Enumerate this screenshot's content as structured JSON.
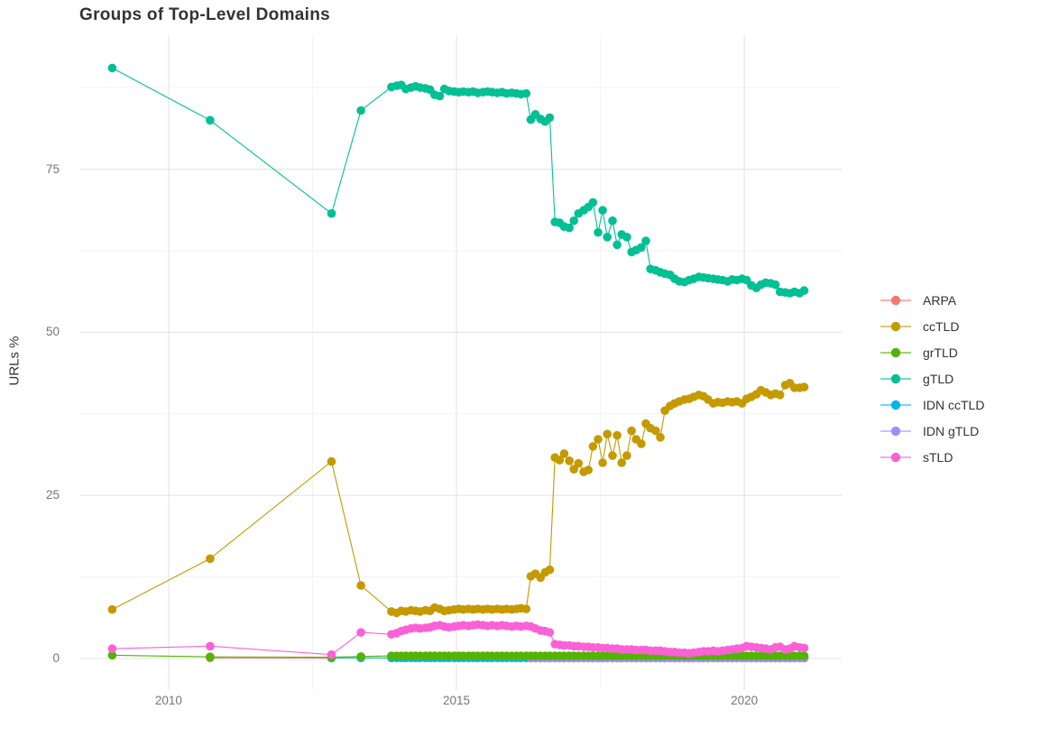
{
  "chart_data": {
    "type": "line",
    "title": "Groups of Top-Level Domains",
    "ylabel": "URLs %",
    "xlabel": "",
    "legend_position": "right",
    "grid": true,
    "xlim": [
      2008.45,
      2021.69
    ],
    "ylim": [
      -4.84,
      95.4
    ],
    "x_ticks": [
      2010,
      2015,
      2020
    ],
    "x_tick_labels": [
      "2010",
      "2015",
      "2020"
    ],
    "x_minor_ticks": [
      2012.5,
      2017.5
    ],
    "y_ticks": [
      0,
      25,
      50,
      75
    ],
    "y_tick_labels": [
      "0",
      "25",
      "50",
      "75"
    ],
    "y_minor_ticks": [
      12.5,
      37.5,
      62.5,
      87.5
    ],
    "x": [
      2009.02,
      2010.72,
      2012.83,
      2013.34,
      2013.87,
      2013.96,
      2014.04,
      2014.12,
      2014.21,
      2014.29,
      2014.37,
      2014.46,
      2014.54,
      2014.62,
      2014.71,
      2014.79,
      2014.87,
      2014.96,
      2015.04,
      2015.12,
      2015.21,
      2015.29,
      2015.37,
      2015.46,
      2015.54,
      2015.62,
      2015.71,
      2015.79,
      2015.87,
      2015.96,
      2016.04,
      2016.12,
      2016.21,
      2016.29,
      2016.37,
      2016.46,
      2016.54,
      2016.62,
      2016.71,
      2016.79,
      2016.87,
      2016.96,
      2017.04,
      2017.12,
      2017.21,
      2017.29,
      2017.37,
      2017.46,
      2017.54,
      2017.62,
      2017.71,
      2017.79,
      2017.87,
      2017.96,
      2018.04,
      2018.12,
      2018.21,
      2018.29,
      2018.37,
      2018.46,
      2018.54,
      2018.62,
      2018.71,
      2018.79,
      2018.87,
      2018.96,
      2019.04,
      2019.12,
      2019.21,
      2019.29,
      2019.37,
      2019.46,
      2019.54,
      2019.62,
      2019.71,
      2019.79,
      2019.87,
      2019.96,
      2020.04,
      2020.12,
      2020.21,
      2020.29,
      2020.37,
      2020.46,
      2020.54,
      2020.62,
      2020.71,
      2020.79,
      2020.87,
      2020.96,
      2021.04
    ],
    "series": [
      {
        "name": "ARPA",
        "color": "#F8766D",
        "values": [
          null,
          0.1,
          0.05,
          null,
          null,
          null,
          null,
          null,
          null,
          null,
          null,
          null,
          null,
          null,
          null,
          null,
          null,
          null,
          null,
          null,
          null,
          null,
          null,
          null,
          null,
          null,
          null,
          null,
          null,
          null,
          null,
          null,
          null,
          null,
          null,
          null,
          null,
          null,
          null,
          null,
          null,
          null,
          null,
          null,
          null,
          null,
          null,
          null,
          null,
          null,
          null,
          null,
          null,
          null,
          null,
          null,
          null,
          null,
          null,
          null,
          null,
          null,
          null,
          null,
          null,
          null,
          null,
          null,
          null,
          null,
          null,
          null,
          null,
          null,
          null,
          null,
          null,
          null,
          null,
          null,
          null,
          null,
          null,
          null,
          null,
          null,
          null,
          null,
          null,
          null,
          null
        ]
      },
      {
        "name": "ccTLD",
        "color": "#C49A00",
        "values": [
          7.5,
          15.3,
          30.2,
          11.2,
          7.2,
          7.0,
          7.3,
          7.2,
          7.4,
          7.3,
          7.2,
          7.4,
          7.3,
          7.8,
          7.6,
          7.3,
          7.4,
          7.5,
          7.6,
          7.5,
          7.6,
          7.5,
          7.6,
          7.5,
          7.6,
          7.5,
          7.6,
          7.5,
          7.6,
          7.5,
          7.6,
          7.7,
          7.6,
          12.6,
          13.0,
          12.4,
          13.2,
          13.6,
          30.8,
          30.4,
          31.4,
          30.3,
          29.0,
          29.9,
          28.6,
          28.9,
          32.5,
          33.6,
          30.0,
          34.4,
          31.1,
          34.2,
          30.0,
          31.1,
          34.9,
          33.6,
          32.9,
          36.0,
          35.3,
          34.9,
          33.9,
          38.0,
          38.7,
          39.1,
          39.4,
          39.7,
          39.8,
          40.1,
          40.4,
          40.2,
          39.7,
          39.1,
          39.3,
          39.2,
          39.4,
          39.3,
          39.4,
          39.1,
          39.8,
          40.1,
          40.5,
          41.1,
          40.8,
          40.4,
          40.6,
          40.4,
          41.9,
          42.2,
          41.5,
          41.5,
          41.6
        ]
      },
      {
        "name": "grTLD",
        "color": "#53B400",
        "values": [
          0.5,
          0.25,
          0.2,
          0.3,
          0.4,
          0.4,
          0.4,
          0.4,
          0.4,
          0.4,
          0.4,
          0.4,
          0.4,
          0.4,
          0.4,
          0.4,
          0.4,
          0.4,
          0.4,
          0.4,
          0.4,
          0.4,
          0.4,
          0.4,
          0.4,
          0.4,
          0.4,
          0.4,
          0.4,
          0.4,
          0.4,
          0.4,
          0.4,
          0.4,
          0.4,
          0.4,
          0.4,
          0.4,
          0.4,
          0.4,
          0.4,
          0.4,
          0.4,
          0.4,
          0.4,
          0.4,
          0.4,
          0.4,
          0.4,
          0.4,
          0.4,
          0.4,
          0.4,
          0.4,
          0.4,
          0.4,
          0.4,
          0.4,
          0.4,
          0.4,
          0.4,
          0.4,
          0.4,
          0.4,
          0.4,
          0.4,
          0.4,
          0.4,
          0.4,
          0.4,
          0.4,
          0.4,
          0.4,
          0.4,
          0.4,
          0.4,
          0.4,
          0.4,
          0.4,
          0.4,
          0.4,
          0.4,
          0.4,
          0.4,
          0.4,
          0.4,
          0.4,
          0.4,
          0.4,
          0.4,
          0.4
        ]
      },
      {
        "name": "gTLD",
        "color": "#00C094",
        "values": [
          90.5,
          82.5,
          68.2,
          84.0,
          87.6,
          87.8,
          87.9,
          87.3,
          87.5,
          87.7,
          87.5,
          87.4,
          87.2,
          86.4,
          86.2,
          87.3,
          87.0,
          86.9,
          86.8,
          86.9,
          86.8,
          86.9,
          86.7,
          86.8,
          86.9,
          86.8,
          86.7,
          86.8,
          86.6,
          86.7,
          86.6,
          86.5,
          86.6,
          82.6,
          83.4,
          82.7,
          82.3,
          82.9,
          66.9,
          66.8,
          66.2,
          66.0,
          67.1,
          68.2,
          68.7,
          69.2,
          69.9,
          65.3,
          68.7,
          64.6,
          67.1,
          63.4,
          65.0,
          64.6,
          62.3,
          62.6,
          63.0,
          64.0,
          59.7,
          59.5,
          59.2,
          59.0,
          58.8,
          58.2,
          57.8,
          57.7,
          58.0,
          58.2,
          58.5,
          58.4,
          58.3,
          58.2,
          58.1,
          58.0,
          57.8,
          58.1,
          58.0,
          58.2,
          58.0,
          57.2,
          56.8,
          57.3,
          57.6,
          57.5,
          57.3,
          56.2,
          56.1,
          56.0,
          56.2,
          56.0,
          56.4
        ]
      },
      {
        "name": "IDN ccTLD",
        "color": "#00B6EB",
        "values": [
          null,
          null,
          0.1,
          0.1,
          0.1,
          0.1,
          0.1,
          0.1,
          0.1,
          0.1,
          0.1,
          0.1,
          0.1,
          0.1,
          0.1,
          0.1,
          0.1,
          0.1,
          0.1,
          0.1,
          0.1,
          0.1,
          0.1,
          0.1,
          0.1,
          0.1,
          0.1,
          0.1,
          0.1,
          0.1,
          0.1,
          0.1,
          0.1,
          0.1,
          0.1,
          0.1,
          0.1,
          0.1,
          0.1,
          0.1,
          0.1,
          0.1,
          0.1,
          0.1,
          0.1,
          0.1,
          0.1,
          0.1,
          0.1,
          0.1,
          0.1,
          0.1,
          0.1,
          0.1,
          0.1,
          0.1,
          0.1,
          0.1,
          0.1,
          0.1,
          0.1,
          0.1,
          0.1,
          0.1,
          0.1,
          0.1,
          0.1,
          0.1,
          0.1,
          0.1,
          0.1,
          0.1,
          0.1,
          0.1,
          0.1,
          0.1,
          0.1,
          0.1,
          0.1,
          0.1,
          0.1,
          0.1,
          0.1,
          0.1,
          0.1,
          0.1,
          0.1,
          0.1,
          0.1,
          0.1,
          0.1
        ]
      },
      {
        "name": "IDN gTLD",
        "color": "#A58AFF",
        "values": [
          null,
          null,
          null,
          null,
          null,
          null,
          null,
          null,
          null,
          null,
          null,
          null,
          null,
          null,
          null,
          null,
          null,
          null,
          null,
          null,
          null,
          null,
          null,
          null,
          null,
          null,
          null,
          null,
          null,
          null,
          null,
          null,
          null,
          0.05,
          0.05,
          0.05,
          0.05,
          0.05,
          0.05,
          0.05,
          0.05,
          0.05,
          0.05,
          0.05,
          0.05,
          0.05,
          0.05,
          0.05,
          0.05,
          0.05,
          0.05,
          0.05,
          0.05,
          0.05,
          0.05,
          0.05,
          0.05,
          0.05,
          0.05,
          0.05,
          0.05,
          0.05,
          0.05,
          0.05,
          0.05,
          0.05,
          0.05,
          0.05,
          0.05,
          0.05,
          0.05,
          0.05,
          0.05,
          0.05,
          0.05,
          0.05,
          0.05,
          0.05,
          0.05,
          0.05,
          0.05,
          0.05,
          0.05,
          0.05,
          0.05,
          0.05,
          0.05,
          0.05,
          0.05,
          0.05,
          0.05
        ]
      },
      {
        "name": "sTLD",
        "color": "#FB61D7",
        "values": [
          1.5,
          1.9,
          0.6,
          4.0,
          3.7,
          3.9,
          4.2,
          4.4,
          4.6,
          4.7,
          4.6,
          4.7,
          4.8,
          5.0,
          5.1,
          4.9,
          4.8,
          4.9,
          5.0,
          5.1,
          5.0,
          5.1,
          5.2,
          5.1,
          5.0,
          5.1,
          5.0,
          5.1,
          5.0,
          4.9,
          5.0,
          4.9,
          5.0,
          4.9,
          4.6,
          4.3,
          4.2,
          4.0,
          2.2,
          2.1,
          2.0,
          2.0,
          1.9,
          1.9,
          1.8,
          1.8,
          1.7,
          1.7,
          1.6,
          1.6,
          1.5,
          1.5,
          1.4,
          1.4,
          1.4,
          1.3,
          1.3,
          1.3,
          1.2,
          1.2,
          1.2,
          1.1,
          1.0,
          1.0,
          0.9,
          0.9,
          0.8,
          0.9,
          1.0,
          1.1,
          1.1,
          1.2,
          1.1,
          1.2,
          1.3,
          1.4,
          1.5,
          1.6,
          1.9,
          1.8,
          1.7,
          1.6,
          1.5,
          1.4,
          1.7,
          1.8,
          1.4,
          1.5,
          1.9,
          1.7,
          1.6
        ]
      }
    ]
  }
}
